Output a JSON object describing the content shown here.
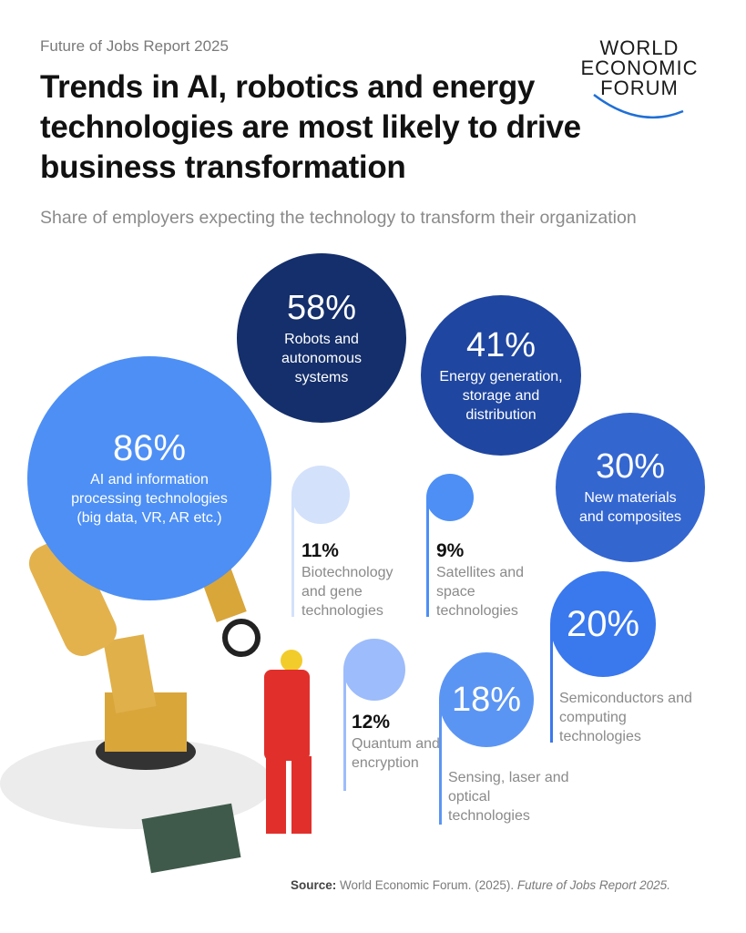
{
  "header": {
    "kicker": "Future of Jobs Report 2025",
    "title": "Trends in AI, robotics and energy technologies are most likely to drive business transformation",
    "subtitle": "Share of employers expecting the technology to transform their organization",
    "logo": "WORLD ECONOMIC FORUM"
  },
  "chart_data": {
    "type": "bubble",
    "title": "Trends in AI, robotics and energy technologies are most likely to drive business transformation",
    "subtitle": "Share of employers expecting the technology to transform their organization",
    "unit": "%",
    "items": [
      {
        "value": 86,
        "pct": "86%",
        "label": "AI and information processing technologies (big data, VR, AR etc.)",
        "color": "#4d8ff5"
      },
      {
        "value": 58,
        "pct": "58%",
        "label": "Robots and autonomous systems",
        "color": "#142f6b"
      },
      {
        "value": 41,
        "pct": "41%",
        "label": "Energy generation, storage and distribution",
        "color": "#1f46a0"
      },
      {
        "value": 30,
        "pct": "30%",
        "label": "New materials and composites",
        "color": "#3466d0"
      },
      {
        "value": 20,
        "pct": "20%",
        "label": "Semiconductors and computing technologies",
        "color": "#3a78ee"
      },
      {
        "value": 18,
        "pct": "18%",
        "label": "Sensing, laser and optical technologies",
        "color": "#5b95f4"
      },
      {
        "value": 12,
        "pct": "12%",
        "label": "Quantum and encryption",
        "color": "#9dbcfb"
      },
      {
        "value": 11,
        "pct": "11%",
        "label": "Biotechnology and gene technologies",
        "color": "#d3e1fb"
      },
      {
        "value": 9,
        "pct": "9%",
        "label": "Satellites and space technologies",
        "color": "#4d8ff5"
      }
    ]
  },
  "footer": {
    "source_label": "Source:",
    "source_text": " World Economic Forum. (2025). ",
    "source_title": "Future of Jobs Report 2025."
  }
}
